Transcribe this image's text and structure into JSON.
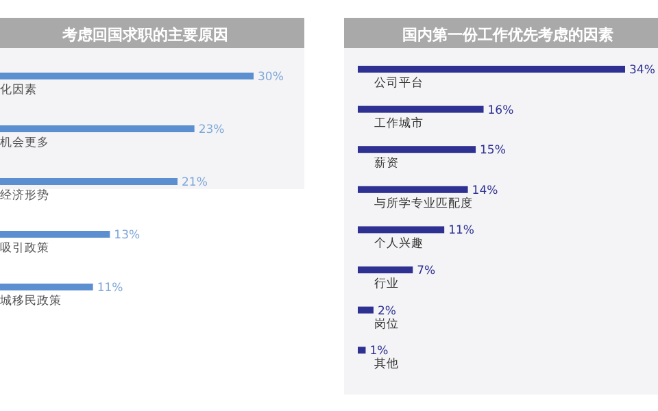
{
  "chart_data": [
    {
      "type": "bar",
      "orientation": "horizontal",
      "title": "考虑回国求职的主要原因",
      "categories": [
        "化因素",
        "机会更多",
        "经济形势",
        "吸引政策",
        "城移民政策"
      ],
      "values": [
        30,
        23,
        21,
        13,
        11
      ],
      "value_labels": [
        "30%",
        "23%",
        "21%",
        "13%",
        "11%"
      ],
      "color": "#5b8fd0"
    },
    {
      "type": "bar",
      "orientation": "horizontal",
      "title": "国内第一份工作优先考虑的因素",
      "categories": [
        "公司平台",
        "工作城市",
        "薪资",
        "与所学专业匹配度",
        "个人兴趣",
        "行业",
        "岗位",
        "其他"
      ],
      "values": [
        34,
        16,
        15,
        14,
        11,
        7,
        2,
        1
      ],
      "value_labels": [
        "34%",
        "16%",
        "15%",
        "14%",
        "11%",
        "7%",
        "2%",
        "1%"
      ],
      "color": "#2e3192"
    }
  ]
}
